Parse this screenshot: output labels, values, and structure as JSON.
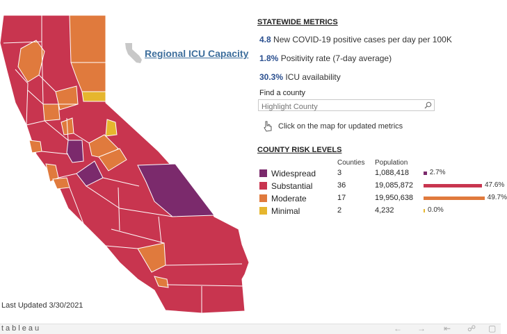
{
  "icu_link": "Regional ICU Capacity",
  "last_updated": "Last Updated 3/30/2021",
  "statewide": {
    "title": "STATEWIDE METRICS",
    "metrics": [
      {
        "value": "4.8",
        "label": "New COVID-19 positive cases per day per 100K"
      },
      {
        "value": "1.8%",
        "label": "Positivity rate (7-day average)"
      },
      {
        "value": "30.3%",
        "label": "ICU availability"
      }
    ]
  },
  "search": {
    "label": "Find a county",
    "placeholder": "Highlight County"
  },
  "hint": "Click on the map for updated metrics",
  "risk": {
    "title": "COUNTY RISK LEVELS",
    "col_counties": "Counties",
    "col_population": "Population",
    "levels": [
      {
        "name": "Widespread",
        "counties": "3",
        "population": "1,088,418",
        "pct": "2.7%",
        "share": 0.027,
        "color": "#7b2a6c"
      },
      {
        "name": "Substantial",
        "counties": "36",
        "population": "19,085,872",
        "pct": "47.6%",
        "share": 0.476,
        "color": "#c8354f"
      },
      {
        "name": "Moderate",
        "counties": "17",
        "population": "19,950,638",
        "pct": "49.7%",
        "share": 0.497,
        "color": "#e07a3d"
      },
      {
        "name": "Minimal",
        "counties": "2",
        "population": "4,232",
        "pct": "0.0%",
        "share": 0.0,
        "color": "#e6b62e"
      }
    ]
  },
  "footer": {
    "logo": "tableau"
  },
  "colors": {
    "widespread": "#7b2a6c",
    "substantial": "#c8354f",
    "moderate": "#e07a3d",
    "minimal": "#e6b62e"
  }
}
